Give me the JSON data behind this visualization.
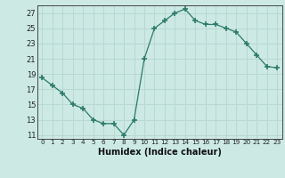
{
  "x": [
    0,
    1,
    2,
    3,
    4,
    5,
    6,
    7,
    8,
    9,
    10,
    11,
    12,
    13,
    14,
    15,
    16,
    17,
    18,
    19,
    20,
    21,
    22,
    23
  ],
  "y": [
    18.5,
    17.5,
    16.5,
    15.0,
    14.5,
    13.0,
    12.5,
    12.5,
    11.0,
    13.0,
    21.0,
    25.0,
    26.0,
    27.0,
    27.5,
    26.0,
    25.5,
    25.5,
    25.0,
    24.5,
    23.0,
    21.5,
    20.0,
    19.8
  ],
  "line_color": "#2d7a6a",
  "marker": "+",
  "marker_size": 4,
  "marker_lw": 1.2,
  "bg_color": "#cce9e4",
  "grid_color": "#b8d8d2",
  "xlabel": "Humidex (Indice chaleur)",
  "ylabel_ticks": [
    11,
    13,
    15,
    17,
    19,
    21,
    23,
    25,
    27
  ],
  "xlim": [
    -0.5,
    23.5
  ],
  "ylim": [
    10.5,
    28.0
  ],
  "xtick_labels": [
    "0",
    "1",
    "2",
    "3",
    "4",
    "5",
    "6",
    "7",
    "8",
    "9",
    "10",
    "11",
    "12",
    "13",
    "14",
    "15",
    "16",
    "17",
    "18",
    "19",
    "20",
    "21",
    "22",
    "23"
  ]
}
